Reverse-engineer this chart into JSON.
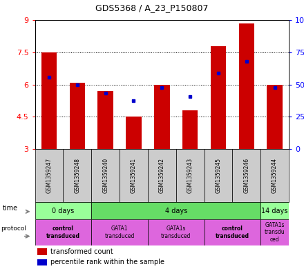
{
  "title": "GDS5368 / A_23_P150807",
  "samples": [
    "GSM1359247",
    "GSM1359248",
    "GSM1359240",
    "GSM1359241",
    "GSM1359242",
    "GSM1359243",
    "GSM1359245",
    "GSM1359246",
    "GSM1359244"
  ],
  "red_values": [
    7.5,
    6.1,
    5.7,
    4.5,
    6.0,
    4.8,
    7.8,
    8.85,
    6.0
  ],
  "blue_values": [
    6.35,
    5.98,
    5.6,
    5.25,
    5.85,
    5.45,
    6.55,
    7.1,
    5.85
  ],
  "y_min": 3.0,
  "y_max": 9.0,
  "y_ticks": [
    3.0,
    4.5,
    6.0,
    7.5,
    9.0
  ],
  "y_tick_labels": [
    "3",
    "4.5",
    "6",
    "7.5",
    "9"
  ],
  "y2_ticks": [
    0,
    25,
    50,
    75,
    100
  ],
  "y2_tick_labels": [
    "0",
    "25",
    "50",
    "75",
    "100%"
  ],
  "bar_color": "#cc0000",
  "dot_color": "#0000cc",
  "time_groups": [
    {
      "label": "0 days",
      "start": 0,
      "end": 2,
      "color": "#99ff99"
    },
    {
      "label": "4 days",
      "start": 2,
      "end": 8,
      "color": "#66dd66"
    },
    {
      "label": "14 days",
      "start": 8,
      "end": 9,
      "color": "#99ff99"
    }
  ],
  "protocol_groups": [
    {
      "label": "control\ntransduced",
      "start": 0,
      "end": 2,
      "color": "#dd66dd",
      "bold": true
    },
    {
      "label": "GATA1\ntransduced",
      "start": 2,
      "end": 4,
      "color": "#dd66dd",
      "bold": false
    },
    {
      "label": "GATA1s\ntransduced",
      "start": 4,
      "end": 6,
      "color": "#dd66dd",
      "bold": false
    },
    {
      "label": "control\ntransduced",
      "start": 6,
      "end": 8,
      "color": "#dd66dd",
      "bold": true
    },
    {
      "label": "GATA1s\ntransdu\nced",
      "start": 8,
      "end": 9,
      "color": "#dd66dd",
      "bold": false
    }
  ],
  "sample_bg_color": "#cccccc",
  "background_color": "#ffffff"
}
